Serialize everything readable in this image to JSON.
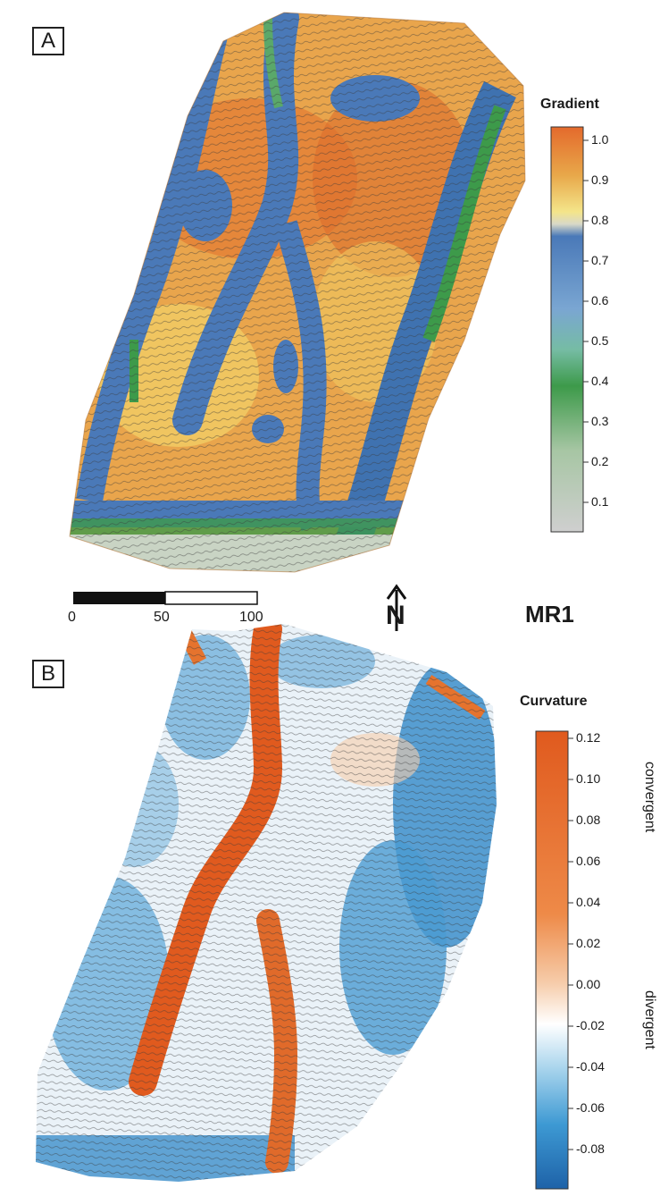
{
  "panel_a": {
    "letter": "A",
    "legend_title": "Gradient",
    "ticks": [
      "1.0",
      "0.9",
      "0.8",
      "0.7",
      "0.6",
      "0.5",
      "0.4",
      "0.3",
      "0.2",
      "0.1"
    ],
    "colors": [
      "#e46a2c",
      "#e8a84a",
      "#f4e58a",
      "#4a79b8",
      "#7aa6d2",
      "#76bca4",
      "#3d9a4a",
      "#a7c6a4",
      "#cfcfcf"
    ]
  },
  "panel_b": {
    "letter": "B",
    "legend_title": "Curvature",
    "ticks": [
      "0.12",
      "0.10",
      "0.08",
      "0.06",
      "0.04",
      "0.02",
      "0.00",
      "-0.02",
      "-0.04",
      "-0.06",
      "-0.08"
    ],
    "top_label": "convergent",
    "bottom_label": "divergent",
    "colors": [
      "#e05a1e",
      "#ee8a48",
      "#f6ccaa",
      "#ffffff",
      "#a6d3ec",
      "#3d99d3",
      "#1e62a8"
    ]
  },
  "scale_bar": {
    "labels": [
      "0",
      "50",
      "100"
    ]
  },
  "north_symbol": "N",
  "site_label": "MR1"
}
